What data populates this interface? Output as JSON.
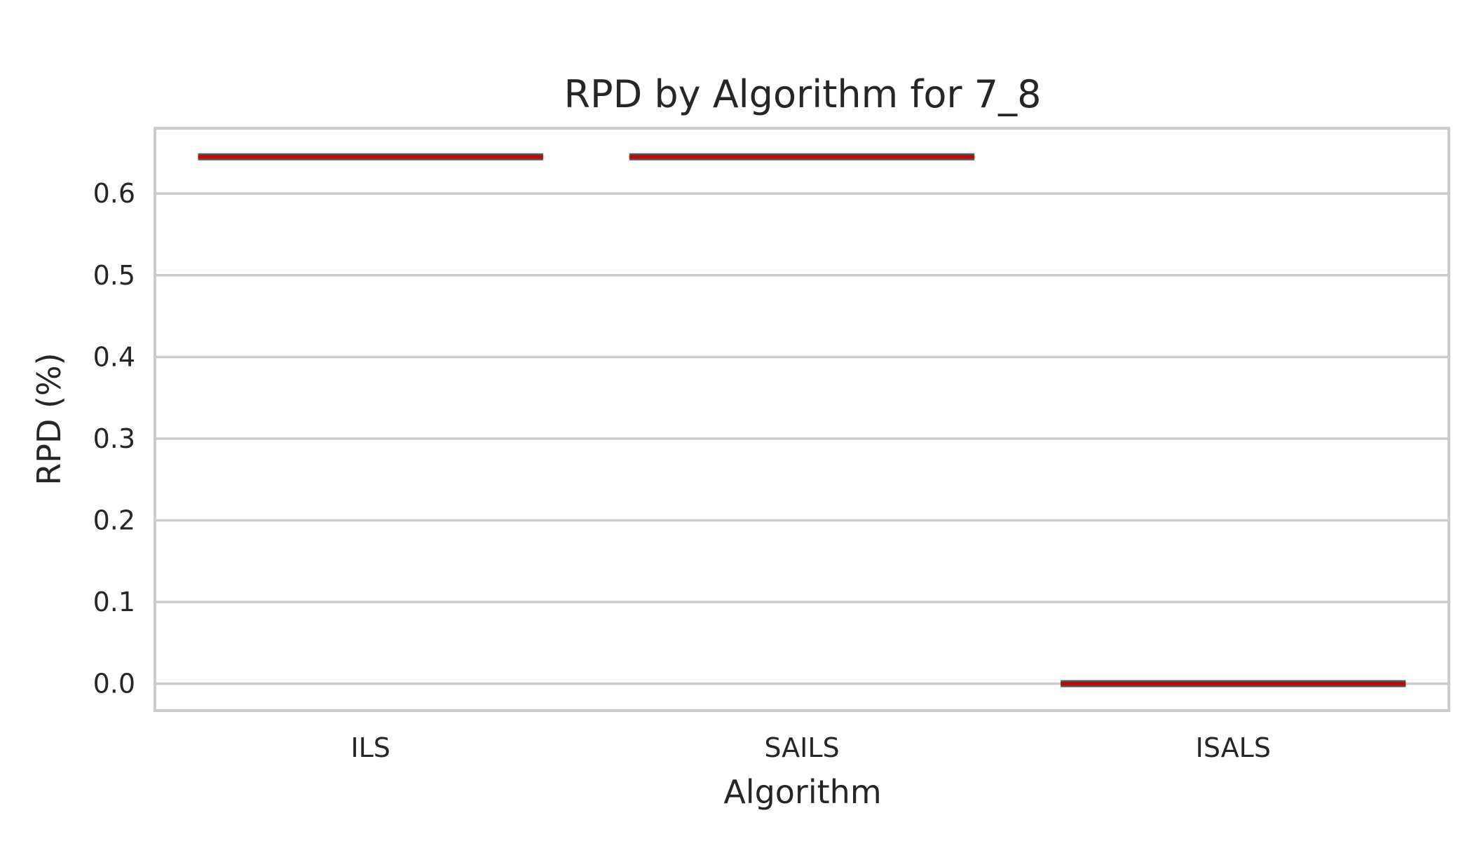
{
  "chart_data": {
    "type": "box",
    "title": "RPD by Algorithm for 7_8",
    "xlabel": "Algorithm",
    "ylabel": "RPD (%)",
    "categories": [
      "ILS",
      "SAILS",
      "ISALS"
    ],
    "values": [
      0.645,
      0.645,
      0.0
    ],
    "ylim": [
      -0.033,
      0.68
    ],
    "yticks": [
      "0.0",
      "0.1",
      "0.2",
      "0.3",
      "0.4",
      "0.5",
      "0.6"
    ],
    "grid": true,
    "box_color": "#555555",
    "median_color": "#d10000",
    "grid_color": "#cccccc",
    "frame_color": "#cccccc"
  }
}
